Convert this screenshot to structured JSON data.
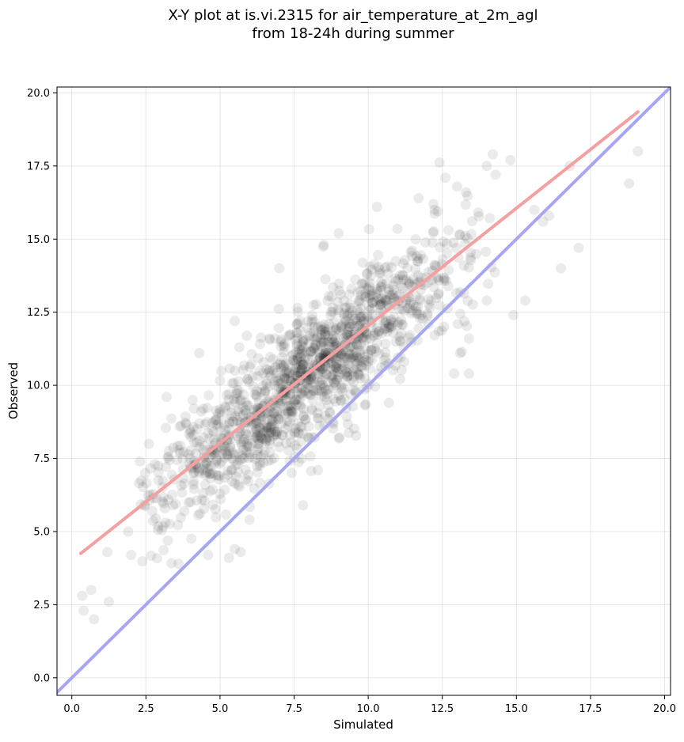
{
  "chart_data": {
    "type": "scatter",
    "title": "X-Y plot at is.vi.2315 for air_temperature_at_2m_agl",
    "subtitle": "from 18-24h during summer",
    "xlabel": "Simulated",
    "ylabel": "Observed",
    "xlim": [
      -0.5,
      20.2
    ],
    "ylim": [
      -0.6,
      20.2
    ],
    "x_ticks": [
      "0.0",
      "2.5",
      "5.0",
      "7.5",
      "10.0",
      "12.5",
      "15.0",
      "17.5",
      "20.0"
    ],
    "y_ticks": [
      "0.0",
      "2.5",
      "5.0",
      "7.5",
      "10.0",
      "12.5",
      "15.0",
      "17.5",
      "20.0"
    ],
    "grid": true,
    "legend": "none",
    "point_color": "#000000",
    "point_opacity": 0.08,
    "fit_line": {
      "x": [
        0.3,
        19.1
      ],
      "y": [
        4.25,
        19.35
      ],
      "color": "#f4a0a0"
    },
    "identity_line": {
      "x": [
        -0.5,
        20.2
      ],
      "y": [
        -0.5,
        20.2
      ],
      "color": "#a6a6f2"
    },
    "cloud": {
      "description_values": "dense cluster following y = 0.8x + 4.0 with spread ~1.1",
      "count": 1400,
      "x_center": 8.0,
      "x_spread": 2.6,
      "slope": 0.8,
      "intercept": 4.0,
      "noise": 1.1
    },
    "outliers": [
      [
        0.35,
        2.8
      ],
      [
        0.65,
        3.0
      ],
      [
        0.4,
        2.3
      ],
      [
        0.75,
        2.0
      ],
      [
        1.25,
        2.6
      ],
      [
        1.2,
        4.3
      ],
      [
        2.0,
        4.2
      ],
      [
        1.9,
        5.0
      ],
      [
        3.6,
        3.9
      ],
      [
        4.6,
        4.2
      ],
      [
        5.3,
        4.1
      ],
      [
        5.5,
        4.4
      ],
      [
        5.7,
        4.3
      ],
      [
        8.3,
        7.1
      ],
      [
        7.8,
        5.9
      ],
      [
        10.7,
        9.4
      ],
      [
        12.9,
        10.4
      ],
      [
        13.4,
        10.4
      ],
      [
        13.1,
        11.1
      ],
      [
        13.4,
        11.6
      ],
      [
        14.0,
        12.9
      ],
      [
        14.9,
        12.4
      ],
      [
        15.3,
        12.9
      ],
      [
        16.5,
        14.0
      ],
      [
        17.1,
        14.7
      ],
      [
        18.8,
        16.9
      ],
      [
        19.1,
        18.0
      ],
      [
        16.8,
        17.5
      ],
      [
        14.2,
        17.9
      ],
      [
        14.0,
        17.5
      ],
      [
        14.8,
        17.7
      ],
      [
        14.3,
        17.2
      ],
      [
        15.6,
        16.0
      ],
      [
        16.1,
        15.8
      ],
      [
        15.9,
        15.6
      ],
      [
        13.3,
        16.6
      ],
      [
        12.6,
        17.1
      ],
      [
        13.0,
        16.8
      ],
      [
        12.2,
        16.2
      ],
      [
        11.7,
        16.4
      ],
      [
        10.3,
        16.1
      ],
      [
        3.2,
        9.6
      ],
      [
        2.6,
        8.0
      ],
      [
        2.3,
        7.4
      ],
      [
        4.3,
        11.1
      ],
      [
        7.0,
        14.0
      ],
      [
        9.0,
        15.2
      ],
      [
        8.5,
        14.8
      ],
      [
        5.5,
        12.2
      ]
    ]
  }
}
